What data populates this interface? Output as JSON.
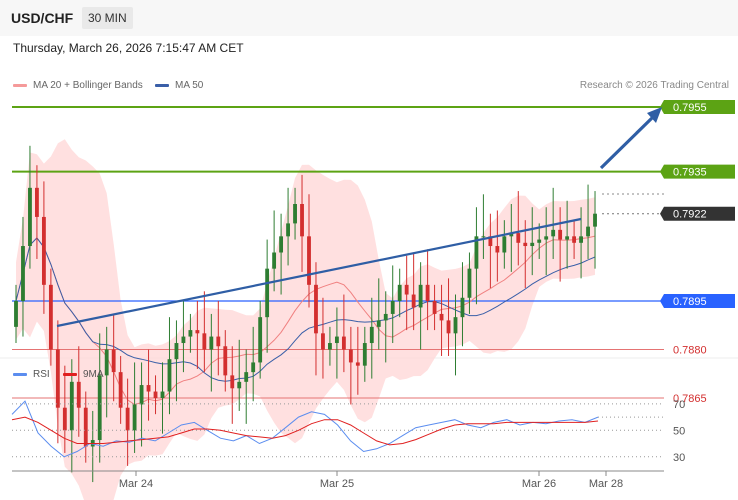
{
  "header": {
    "symbol": "USD/CHF",
    "timeframe": "30 MIN"
  },
  "datetime": "Thursday, March 26, 2026 7:15:47 AM CET",
  "legend": {
    "bollinger_label": "MA 20 + Bollinger Bands",
    "ma50_label": "MA 50",
    "copyright": "Research © 2026 Trading Central"
  },
  "rsi_legend": {
    "rsi_label": "RSI",
    "ma_label": "9MA"
  },
  "colors": {
    "candle_up": "#2e7d32",
    "candle_down": "#d32f2f",
    "bollinger": "#ffd6d6",
    "ma20": "#f08080",
    "ma50": "#3a5fa8",
    "resistance": "#5ca314",
    "pivot": "#2962ff",
    "support": "#e57373",
    "current": "#333333",
    "arrow": "#2f5ea5",
    "rsi": "#5b8def",
    "rsi_ma": "#e02020"
  },
  "chart_data": [
    {
      "type": "candlestick",
      "title": "USD/CHF",
      "timeframe": "30 MIN",
      "x_ticks": [
        "Mar 24",
        "Mar 25",
        "Mar 26",
        "Mar 28"
      ],
      "ylim": [
        0.7805,
        0.7985
      ],
      "levels": [
        {
          "value": 0.7955,
          "label": "0.7955",
          "kind": "resistance"
        },
        {
          "value": 0.7935,
          "label": "0.7935",
          "kind": "resistance"
        },
        {
          "value": 0.7922,
          "label": "0.7922",
          "kind": "current"
        },
        {
          "value": 0.7895,
          "label": "0.7895",
          "kind": "pivot"
        },
        {
          "value": 0.788,
          "label": "0.7880",
          "kind": "support"
        },
        {
          "value": 0.7865,
          "label": "0.7865",
          "kind": "support"
        }
      ],
      "close_series": [
        0.7895,
        0.7912,
        0.793,
        0.7921,
        0.79,
        0.788,
        0.7862,
        0.7855,
        0.787,
        0.7862,
        0.785,
        0.7852,
        0.7872,
        0.788,
        0.7873,
        0.7862,
        0.7855,
        0.7863,
        0.7869,
        0.7867,
        0.7865,
        0.7867,
        0.7877,
        0.7882,
        0.7884,
        0.7886,
        0.7885,
        0.788,
        0.7884,
        0.7881,
        0.7872,
        0.7868,
        0.787,
        0.7873,
        0.7876,
        0.789,
        0.7905,
        0.791,
        0.7915,
        0.7919,
        0.7925,
        0.7915,
        0.79,
        0.7885,
        0.788,
        0.7882,
        0.7884,
        0.788,
        0.7876,
        0.7875,
        0.7882,
        0.7887,
        0.7889,
        0.7891,
        0.7895,
        0.79,
        0.7897,
        0.7893,
        0.79,
        0.7895,
        0.7891,
        0.7889,
        0.7885,
        0.789,
        0.7896,
        0.7905,
        0.7915,
        0.7915,
        0.7912,
        0.791,
        0.7915,
        0.7916,
        0.7913,
        0.7912,
        0.7913,
        0.7914,
        0.7915,
        0.7917,
        0.7914,
        0.7915,
        0.7913,
        0.7915,
        0.7918,
        0.7922
      ],
      "annotations": [
        "Ascending support trendline",
        "Projection arrow to 0.7955"
      ]
    },
    {
      "type": "line",
      "title": "RSI",
      "ylim": [
        20,
        85
      ],
      "y_ticks": [
        70,
        50,
        30
      ],
      "series": [
        {
          "name": "RSI",
          "values": [
            62,
            72,
            48,
            38,
            30,
            34,
            40,
            38,
            42,
            41,
            44,
            42,
            48,
            54,
            56,
            50,
            44,
            42,
            46,
            40,
            44,
            52,
            60,
            64,
            62,
            54,
            42,
            34,
            36,
            40,
            46,
            52,
            54,
            56,
            58,
            54,
            52,
            56,
            58,
            54,
            56,
            55,
            57,
            58,
            56,
            60
          ]
        },
        {
          "name": "9MA",
          "values": [
            58,
            60,
            56,
            50,
            44,
            40,
            40,
            40,
            41,
            42,
            43,
            44,
            45,
            48,
            51,
            51,
            50,
            48,
            46,
            45,
            44,
            46,
            50,
            55,
            58,
            58,
            54,
            48,
            42,
            39,
            40,
            43,
            47,
            51,
            54,
            55,
            55,
            55,
            56,
            56,
            56,
            56,
            56,
            56,
            56,
            57
          ]
        }
      ]
    }
  ]
}
